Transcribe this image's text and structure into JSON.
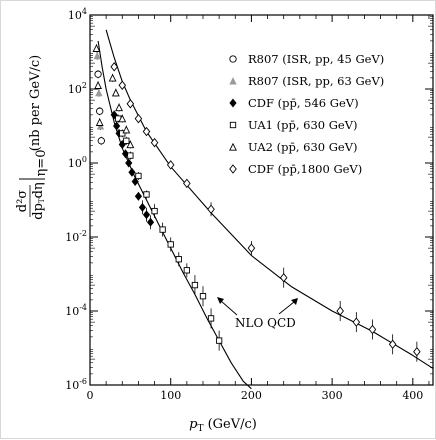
{
  "chart_data": {
    "type": "scatter",
    "title": "",
    "xlabel": "pT (GeV/c)",
    "xlabel_parts": {
      "main": "p",
      "sub": "T",
      "unit": " (GeV/c)"
    },
    "ylabel": "d²σ/dpT dη |η=0 (nb per GeV/c)",
    "ylabel_parts": {
      "numer": "d²σ",
      "denom": "dp",
      "denom_sub": "T",
      "denom_tail": "dη",
      "cond": "η=0",
      "unit": "(nb per GeV/c)"
    },
    "xlim": [
      0,
      425
    ],
    "ylim_log10": [
      -6,
      4
    ],
    "y_scale": "log",
    "x_ticks": [
      0,
      100,
      200,
      300,
      400
    ],
    "x_tick_labels": [
      "0",
      "100",
      "200",
      "300",
      "400"
    ],
    "y_ticks_exp": [
      -6,
      -4,
      -2,
      0,
      2,
      4
    ],
    "y_tick_base": "10",
    "y_tick_exps": [
      "-6",
      "-4",
      "-2",
      "0",
      "2",
      "4"
    ],
    "legend_position": "right",
    "legend": [
      {
        "label": "R807 (ISR, pp, 45 GeV)",
        "marker": "open-circle"
      },
      {
        "label": "R807 (ISR, pp, 63 GeV)",
        "marker": "gray-triangle"
      },
      {
        "label": "CDF (pp̄, 546 GeV)",
        "marker": "filled-diamond"
      },
      {
        "label": "UA1 (pp̄, 630 GeV)",
        "marker": "open-square"
      },
      {
        "label": "UA2 (pp̄, 630 GeV)",
        "marker": "open-triangle"
      },
      {
        "label": "CDF (pp̄,1800 GeV)",
        "marker": "open-diamond"
      }
    ],
    "annotation": "NLO QCD",
    "curves": [
      {
        "name": "NLO QCD low energy",
        "x": [
          10,
          15,
          20,
          30,
          40,
          55,
          70,
          85,
          100,
          115,
          130,
          145,
          160,
          175,
          190,
          200
        ],
        "log10y": [
          3.3,
          2.6,
          2.0,
          1.1,
          0.4,
          -0.35,
          -1.0,
          -1.65,
          -2.3,
          -2.95,
          -3.55,
          -4.2,
          -4.8,
          -5.4,
          -5.9,
          -6.1
        ]
      },
      {
        "name": "NLO QCD 1800 GeV",
        "x": [
          20,
          30,
          40,
          50,
          70,
          100,
          150,
          200,
          250,
          300,
          350,
          400,
          425
        ],
        "log10y": [
          3.6,
          2.85,
          2.2,
          1.7,
          0.85,
          -0.1,
          -1.35,
          -2.5,
          -3.35,
          -4.0,
          -4.55,
          -5.2,
          -5.55
        ]
      }
    ],
    "series": [
      {
        "marker": "open-circle",
        "x": [
          10,
          12,
          14
        ],
        "log10y": [
          2.4,
          1.4,
          0.6
        ]
      },
      {
        "marker": "gray-triangle",
        "x": [
          9,
          11,
          13
        ],
        "log10y": [
          2.9,
          1.9,
          1.0
        ]
      },
      {
        "marker": "filled-diamond",
        "x": [
          30,
          33,
          36,
          40,
          44,
          48,
          52,
          56,
          60,
          65,
          70,
          75
        ],
        "log10y": [
          1.3,
          1.0,
          0.8,
          0.5,
          0.25,
          0.0,
          -0.25,
          -0.5,
          -0.9,
          -1.2,
          -1.4,
          -1.6
        ]
      },
      {
        "marker": "open-square",
        "x": [
          35,
          40,
          45,
          50,
          60,
          70,
          80,
          90,
          100,
          110,
          120,
          130,
          140,
          150,
          160
        ],
        "log10y": [
          1.2,
          0.8,
          0.6,
          0.2,
          -0.35,
          -0.85,
          -1.3,
          -1.8,
          -2.2,
          -2.6,
          -2.9,
          -3.3,
          -3.6,
          -4.2,
          -4.8
        ]
      },
      {
        "marker": "open-triangle",
        "x": [
          8,
          10,
          12,
          28,
          32,
          36,
          40,
          45,
          50
        ],
        "log10y": [
          3.1,
          2.1,
          1.1,
          2.3,
          1.9,
          1.5,
          1.2,
          0.9,
          0.5
        ]
      },
      {
        "marker": "open-diamond",
        "x": [
          30,
          40,
          50,
          60,
          70,
          80,
          100,
          120,
          150,
          200,
          240,
          310,
          330,
          350,
          375,
          405
        ],
        "log10y": [
          2.6,
          2.1,
          1.6,
          1.2,
          0.85,
          0.55,
          -0.05,
          -0.55,
          -1.25,
          -2.3,
          -3.1,
          -4.0,
          -4.3,
          -4.5,
          -4.9,
          -5.1
        ]
      }
    ]
  }
}
